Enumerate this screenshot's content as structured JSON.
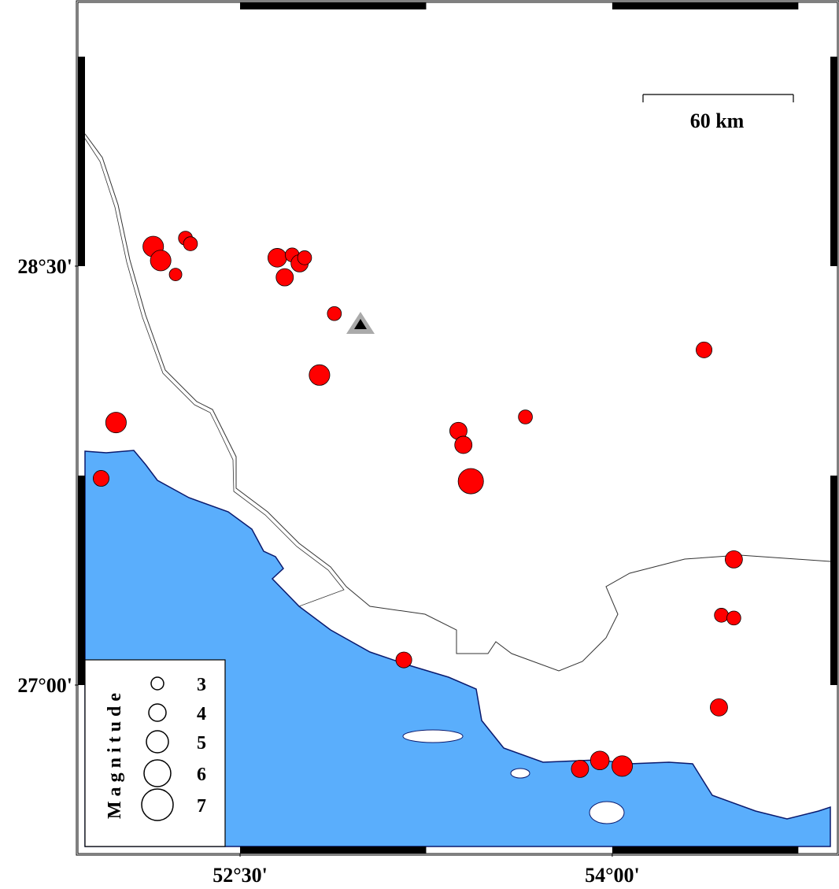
{
  "chart_data": {
    "type": "scatter",
    "xlim": [
      51.875,
      54.879
    ],
    "ylim": [
      26.422,
      29.419
    ],
    "xticks": [
      {
        "value": 52.5,
        "label": "52°30'"
      },
      {
        "value": 54.0,
        "label": "54°00'"
      }
    ],
    "yticks": [
      {
        "value": 28.5,
        "label": "28°30'"
      },
      {
        "value": 27.0,
        "label": "27°00'"
      }
    ],
    "scale_label": "60 km",
    "legend_title": "Magnitude",
    "legend_values": [
      3,
      4,
      5,
      6,
      7
    ],
    "series": [
      {
        "color": "#ff0000",
        "x": [
          52.15,
          52.18,
          52.28,
          52.3,
          52.24,
          52.65,
          52.71,
          52.74,
          52.76,
          52.68,
          52.88,
          52.82,
          52.0,
          51.94,
          53.38,
          53.4,
          53.43,
          53.65,
          54.37,
          54.49,
          54.44,
          54.49,
          54.43,
          53.16,
          53.87,
          53.95,
          54.04
        ],
        "y": [
          28.57,
          28.52,
          28.6,
          28.58,
          28.47,
          28.53,
          28.54,
          28.51,
          28.53,
          28.46,
          28.33,
          28.11,
          27.94,
          27.74,
          27.91,
          27.86,
          27.73,
          27.96,
          28.2,
          27.45,
          27.25,
          27.24,
          26.92,
          27.09,
          26.7,
          26.73,
          26.71
        ],
        "size": [
          4.7,
          4.7,
          3.3,
          3.3,
          3.0,
          4.3,
          3.3,
          4.0,
          3.3,
          4.0,
          3.3,
          4.7,
          4.7,
          3.7,
          4.0,
          4.0,
          5.7,
          3.3,
          3.7,
          4.0,
          3.3,
          3.3,
          4.0,
          3.7,
          4.0,
          4.3,
          4.7
        ]
      }
    ]
  }
}
